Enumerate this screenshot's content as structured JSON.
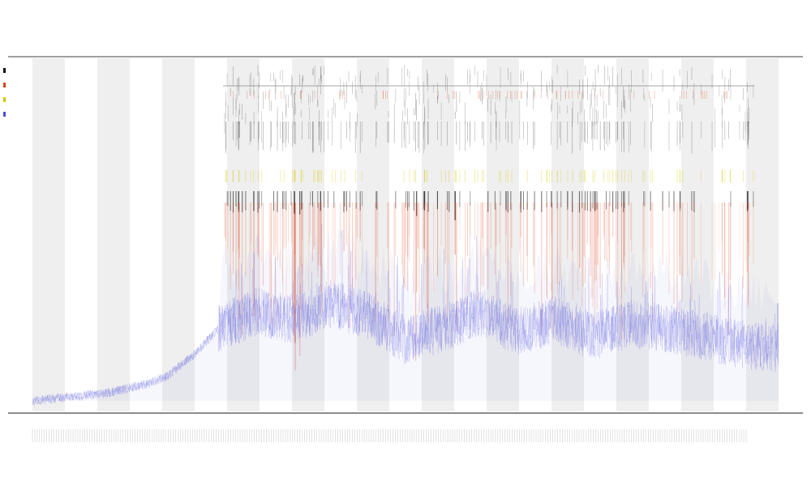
{
  "colors": {
    "band": "#efefef",
    "axis": "#666666",
    "trace": "#4a4ae0",
    "spike_red": "#e0401a",
    "spike_yellow": "#d8c800",
    "spike_black": "#111111"
  },
  "chart_data": {
    "type": "line",
    "title": "",
    "xlabel": "",
    "ylabel": "",
    "grid": false,
    "legend": "left",
    "legend_entries": [
      "",
      "",
      "",
      ""
    ],
    "bands": {
      "count": 23,
      "shaded_every_other": true
    },
    "series": [
      {
        "name": "",
        "color": "#4a4ae0",
        "trend": [
          [
            0.0,
            0.0
          ],
          [
            0.05,
            0.01
          ],
          [
            0.1,
            0.02
          ],
          [
            0.15,
            0.04
          ],
          [
            0.18,
            0.06
          ],
          [
            0.2,
            0.09
          ],
          [
            0.22,
            0.12
          ],
          [
            0.25,
            0.18
          ],
          [
            0.3,
            0.22
          ],
          [
            0.35,
            0.2
          ],
          [
            0.4,
            0.24
          ],
          [
            0.45,
            0.21
          ],
          [
            0.5,
            0.15
          ],
          [
            0.55,
            0.18
          ],
          [
            0.6,
            0.22
          ],
          [
            0.65,
            0.17
          ],
          [
            0.7,
            0.2
          ],
          [
            0.75,
            0.16
          ],
          [
            0.8,
            0.19
          ],
          [
            0.85,
            0.18
          ],
          [
            0.9,
            0.16
          ],
          [
            0.95,
            0.14
          ],
          [
            1.0,
            0.13
          ]
        ]
      }
    ],
    "spike_groups": [
      {
        "x": 0.355,
        "strength": 0.9
      },
      {
        "x": 0.43,
        "strength": 0.6
      },
      {
        "x": 0.515,
        "strength": 0.7
      },
      {
        "x": 0.565,
        "strength": 1.0
      },
      {
        "x": 0.64,
        "strength": 0.5
      },
      {
        "x": 0.7,
        "strength": 0.55
      },
      {
        "x": 0.81,
        "strength": 0.95
      },
      {
        "x": 0.86,
        "strength": 0.5
      }
    ]
  }
}
